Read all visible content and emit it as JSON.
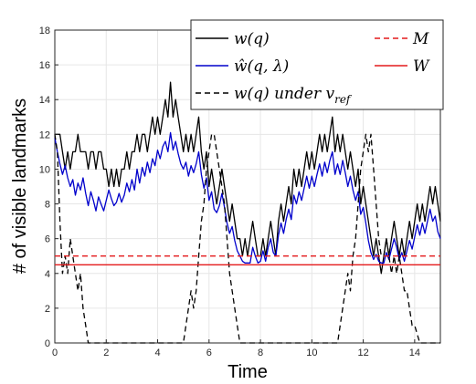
{
  "chart_data": {
    "type": "line",
    "title": "",
    "xlabel": "Time",
    "ylabel": "# of visible landmarks",
    "xlim": [
      0,
      15
    ],
    "ylim": [
      0,
      18
    ],
    "xticks": [
      0,
      2,
      4,
      6,
      8,
      10,
      12,
      14
    ],
    "yticks": [
      0,
      2,
      4,
      6,
      8,
      10,
      12,
      14,
      16,
      18
    ],
    "grid": true,
    "legend_position": "top-right",
    "series": [
      {
        "name": "w(q)",
        "color": "#000000",
        "style": "solid",
        "x": [
          0,
          0.1,
          0.2,
          0.3,
          0.4,
          0.5,
          0.6,
          0.7,
          0.8,
          0.9,
          1.0,
          1.1,
          1.2,
          1.3,
          1.4,
          1.5,
          1.6,
          1.7,
          1.8,
          1.9,
          2.0,
          2.1,
          2.2,
          2.3,
          2.4,
          2.5,
          2.6,
          2.7,
          2.8,
          2.9,
          3.0,
          3.1,
          3.2,
          3.3,
          3.4,
          3.5,
          3.6,
          3.7,
          3.8,
          3.9,
          4.0,
          4.1,
          4.2,
          4.3,
          4.4,
          4.5,
          4.6,
          4.7,
          4.8,
          4.9,
          5.0,
          5.1,
          5.2,
          5.3,
          5.4,
          5.5,
          5.6,
          5.7,
          5.8,
          5.9,
          6.0,
          6.1,
          6.2,
          6.3,
          6.4,
          6.5,
          6.6,
          6.7,
          6.8,
          6.9,
          7.0,
          7.1,
          7.2,
          7.3,
          7.4,
          7.5,
          7.6,
          7.7,
          7.8,
          7.9,
          8.0,
          8.1,
          8.2,
          8.3,
          8.4,
          8.5,
          8.6,
          8.7,
          8.8,
          8.9,
          9.0,
          9.1,
          9.2,
          9.3,
          9.4,
          9.5,
          9.6,
          9.7,
          9.8,
          9.9,
          10.0,
          10.1,
          10.2,
          10.3,
          10.4,
          10.5,
          10.6,
          10.7,
          10.8,
          10.9,
          11.0,
          11.1,
          11.2,
          11.3,
          11.4,
          11.5,
          11.6,
          11.7,
          11.8,
          11.9,
          12.0,
          12.1,
          12.2,
          12.3,
          12.4,
          12.5,
          12.6,
          12.7,
          12.8,
          12.9,
          13.0,
          13.1,
          13.2,
          13.3,
          13.4,
          13.5,
          13.6,
          13.7,
          13.8,
          13.9,
          14.0,
          14.1,
          14.2,
          14.3,
          14.4,
          14.5,
          14.6,
          14.7,
          14.8,
          14.9,
          15.0
        ],
        "values": [
          12,
          12,
          12,
          11,
          10,
          11,
          10,
          11,
          11,
          12,
          11,
          11,
          11,
          10,
          11,
          11,
          10,
          11,
          11,
          10,
          10,
          9,
          10,
          9,
          10,
          9,
          10,
          10,
          11,
          10,
          11,
          11,
          12,
          11,
          12,
          12,
          11,
          12,
          13,
          12,
          13,
          12,
          13,
          14,
          13,
          15,
          13,
          14,
          13,
          12,
          11,
          12,
          11,
          12,
          11,
          12,
          13,
          11,
          10,
          11,
          9,
          10,
          9,
          8,
          9,
          10,
          9,
          8,
          7,
          8,
          7,
          6,
          6,
          5,
          6,
          5,
          6,
          7,
          6,
          5,
          5,
          6,
          5,
          6,
          7,
          6,
          5,
          7,
          8,
          7,
          8,
          9,
          8,
          10,
          9,
          10,
          9,
          10,
          11,
          10,
          11,
          10,
          11,
          12,
          11,
          12,
          11,
          12,
          13,
          11,
          12,
          11,
          12,
          11,
          10,
          11,
          10,
          9,
          10,
          8,
          9,
          8,
          7,
          6,
          5,
          6,
          5,
          4,
          5,
          6,
          5,
          6,
          7,
          6,
          5,
          6,
          5,
          6,
          7,
          6,
          7,
          8,
          7,
          8,
          7,
          8,
          9,
          8,
          9,
          8,
          7
        ]
      },
      {
        "name": "ŵ(q, λ)",
        "color": "#0000cc",
        "style": "solid",
        "x": [
          0,
          0.1,
          0.2,
          0.3,
          0.4,
          0.5,
          0.6,
          0.7,
          0.8,
          0.9,
          1.0,
          1.1,
          1.2,
          1.3,
          1.4,
          1.5,
          1.6,
          1.7,
          1.8,
          1.9,
          2.0,
          2.1,
          2.2,
          2.3,
          2.4,
          2.5,
          2.6,
          2.7,
          2.8,
          2.9,
          3.0,
          3.1,
          3.2,
          3.3,
          3.4,
          3.5,
          3.6,
          3.7,
          3.8,
          3.9,
          4.0,
          4.1,
          4.2,
          4.3,
          4.4,
          4.5,
          4.6,
          4.7,
          4.8,
          4.9,
          5.0,
          5.1,
          5.2,
          5.3,
          5.4,
          5.5,
          5.6,
          5.7,
          5.8,
          5.9,
          6.0,
          6.1,
          6.2,
          6.3,
          6.4,
          6.5,
          6.6,
          6.7,
          6.8,
          6.9,
          7.0,
          7.1,
          7.2,
          7.3,
          7.4,
          7.5,
          7.6,
          7.7,
          7.8,
          7.9,
          8.0,
          8.1,
          8.2,
          8.3,
          8.4,
          8.5,
          8.6,
          8.7,
          8.8,
          8.9,
          9.0,
          9.1,
          9.2,
          9.3,
          9.4,
          9.5,
          9.6,
          9.7,
          9.8,
          9.9,
          10.0,
          10.1,
          10.2,
          10.3,
          10.4,
          10.5,
          10.6,
          10.7,
          10.8,
          10.9,
          11.0,
          11.1,
          11.2,
          11.3,
          11.4,
          11.5,
          11.6,
          11.7,
          11.8,
          11.9,
          12.0,
          12.1,
          12.2,
          12.3,
          12.4,
          12.5,
          12.6,
          12.7,
          12.8,
          12.9,
          13.0,
          13.1,
          13.2,
          13.3,
          13.4,
          13.5,
          13.6,
          13.7,
          13.8,
          13.9,
          14.0,
          14.1,
          14.2,
          14.3,
          14.4,
          14.5,
          14.6,
          14.7,
          14.8,
          14.9,
          15.0
        ],
        "values": [
          11.8,
          11.0,
          10.3,
          9.7,
          10.2,
          9.5,
          9.0,
          9.4,
          8.5,
          9.2,
          8.8,
          9.5,
          8.6,
          7.9,
          8.7,
          8.2,
          7.6,
          8.4,
          8.0,
          7.6,
          8.2,
          8.8,
          8.3,
          7.9,
          8.1,
          8.6,
          8.1,
          8.5,
          9.2,
          8.7,
          9.4,
          8.8,
          10.0,
          9.2,
          10.1,
          9.6,
          10.4,
          9.8,
          10.6,
          10.2,
          11.1,
          10.6,
          11.3,
          11.6,
          11.0,
          12.1,
          11.1,
          11.6,
          10.9,
          10.3,
          10.0,
          10.4,
          9.6,
          10.2,
          9.8,
          10.3,
          11.0,
          9.7,
          8.9,
          9.5,
          8.2,
          8.7,
          7.7,
          7.5,
          7.9,
          8.6,
          7.8,
          6.9,
          6.3,
          6.7,
          5.9,
          5.3,
          5.0,
          4.7,
          4.6,
          4.6,
          4.6,
          5.5,
          5.0,
          4.6,
          4.7,
          5.3,
          4.7,
          5.5,
          6.0,
          5.2,
          5.0,
          6.2,
          6.9,
          6.3,
          7.1,
          7.7,
          7.1,
          8.5,
          8.0,
          8.7,
          8.2,
          8.9,
          9.6,
          8.9,
          9.6,
          9.0,
          9.7,
          10.3,
          9.6,
          10.4,
          9.8,
          10.5,
          11.0,
          9.7,
          10.3,
          9.7,
          10.5,
          9.8,
          9.0,
          9.6,
          8.8,
          8.2,
          8.7,
          7.4,
          7.8,
          6.9,
          5.9,
          5.2,
          4.8,
          5.1,
          4.7,
          4.6,
          4.6,
          5.2,
          4.8,
          5.4,
          6.0,
          5.5,
          4.8,
          5.2,
          4.7,
          5.3,
          5.9,
          5.4,
          6.1,
          6.8,
          6.2,
          6.9,
          6.3,
          7.0,
          7.7,
          7.0,
          7.3,
          6.4,
          6.0
        ]
      },
      {
        "name": "w(q) under v_ref",
        "color": "#000000",
        "style": "dashed",
        "x": [
          0,
          0.1,
          0.2,
          0.3,
          0.4,
          0.5,
          0.6,
          0.7,
          0.8,
          0.9,
          1.0,
          1.1,
          1.2,
          1.3,
          1.5,
          5.0,
          5.1,
          5.2,
          5.3,
          5.4,
          5.5,
          5.6,
          5.7,
          5.8,
          5.9,
          6.0,
          6.1,
          6.2,
          6.3,
          6.4,
          6.5,
          6.6,
          6.7,
          6.8,
          6.9,
          7.0,
          7.1,
          7.2,
          7.3,
          11.0,
          11.1,
          11.2,
          11.3,
          11.4,
          11.5,
          11.6,
          11.7,
          11.8,
          11.9,
          12.0,
          12.1,
          12.2,
          12.3,
          12.4,
          12.5,
          12.6,
          12.7,
          12.8,
          12.9,
          13.0,
          13.1,
          13.2,
          13.3,
          13.4,
          13.5,
          13.6,
          13.7,
          13.8,
          13.9,
          14.0,
          14.2,
          15.0
        ],
        "values": [
          12,
          11,
          7,
          4,
          5,
          4,
          6,
          5,
          4,
          3,
          4,
          2,
          1,
          0,
          0,
          0,
          1,
          2,
          3,
          2,
          3,
          5,
          7,
          8,
          10,
          11,
          12,
          12,
          11,
          10,
          9,
          8,
          6,
          4,
          3,
          2,
          1,
          0,
          0,
          0,
          1,
          2,
          3,
          4,
          3,
          5,
          6,
          8,
          10,
          11,
          12,
          11,
          12,
          10,
          8,
          6,
          5,
          5,
          6,
          5,
          4,
          5,
          4,
          5,
          4,
          3,
          3,
          2,
          1,
          1,
          0,
          0
        ]
      },
      {
        "name": "M",
        "color": "#e41a1c",
        "style": "dashed",
        "x": [
          0,
          15
        ],
        "values": [
          5,
          5
        ]
      },
      {
        "name": "W",
        "color": "#e41a1c",
        "style": "solid",
        "x": [
          0,
          15
        ],
        "values": [
          4.5,
          4.5
        ]
      }
    ]
  },
  "legend": {
    "w": "w(q)",
    "w_hat": "ŵ(q, λ)",
    "w_ref_main": "w(q) under v",
    "w_ref_sub": "ref",
    "M": "M",
    "W": "W"
  }
}
